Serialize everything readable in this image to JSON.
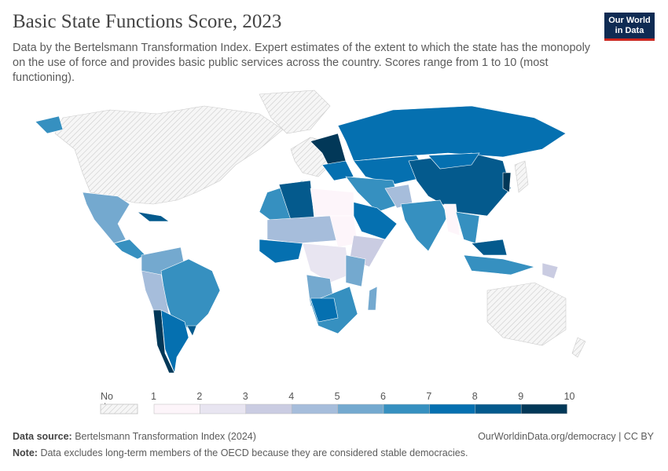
{
  "title": "Basic State Functions Score, 2023",
  "subtitle": "Data by the Bertelsmann Transformation Index. Expert estimates of the extent to which the state has the monopoly on the use of force and provides basic public services across the country. Scores range from 1 to 10 (most functioning).",
  "logo": {
    "line1": "Our World",
    "line2": "in Data"
  },
  "legend": {
    "no_data_label": "No data",
    "ticks": [
      "1",
      "2",
      "3",
      "4",
      "5",
      "6",
      "7",
      "8",
      "9",
      "10"
    ],
    "bins": [
      {
        "range": "1-2",
        "color": "#fdf5fa"
      },
      {
        "range": "2-3",
        "color": "#e8e5f1"
      },
      {
        "range": "3-4",
        "color": "#cacce2"
      },
      {
        "range": "4-5",
        "color": "#a6bddb"
      },
      {
        "range": "5-6",
        "color": "#74a9cf"
      },
      {
        "range": "6-7",
        "color": "#3690c0"
      },
      {
        "range": "7-8",
        "color": "#0570b0"
      },
      {
        "range": "8-9",
        "color": "#045a8d"
      },
      {
        "range": "9-10",
        "color": "#023858"
      }
    ]
  },
  "footer": {
    "source_label": "Data source:",
    "source": "Bertelsmann Transformation Index (2024)",
    "url": "OurWorldinData.org/democracy | CC BY",
    "note_label": "Note:",
    "note": "Data excludes long-term members of the OECD because they are considered stable democracies."
  }
}
